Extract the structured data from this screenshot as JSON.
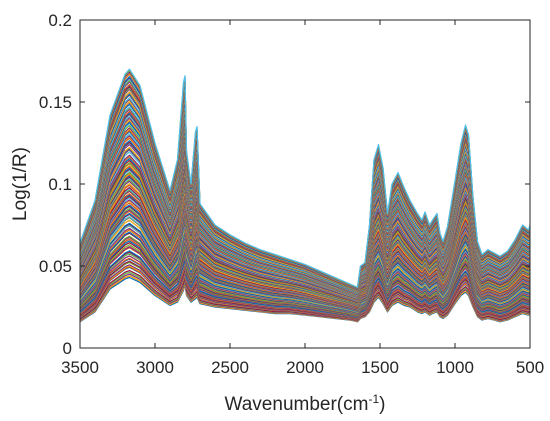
{
  "chart_data": {
    "type": "line",
    "title": "",
    "xlabel": "Wavenumber(cm",
    "xlabel_superscript": "-1",
    "xlabel_suffix": ")",
    "ylabel": "Log(1/R)",
    "xlim": [
      3500,
      500
    ],
    "x_reversed": true,
    "ylim": [
      0,
      0.2
    ],
    "grid": false,
    "box": true,
    "xticks": [
      "3500",
      "3000",
      "2500",
      "2000",
      "1500",
      "1000",
      "500"
    ],
    "xtick_values": [
      3500,
      3000,
      2500,
      2000,
      1500,
      1000,
      500
    ],
    "yticks": [
      "0",
      "0.05",
      "0.1",
      "0.15",
      "0.2"
    ],
    "ytick_values": [
      0,
      0.05,
      0.1,
      0.15,
      0.2
    ],
    "series_count": 160,
    "series_colors": [
      "#0072BD",
      "#D95319",
      "#EDB120",
      "#7E2F8E",
      "#77AC30",
      "#4DBEEE",
      "#A2142F"
    ],
    "series_envelope": {
      "x": [
        3500,
        3400,
        3300,
        3200,
        3170,
        3100,
        3000,
        2900,
        2850,
        2810,
        2800,
        2790,
        2760,
        2730,
        2720,
        2700,
        2600,
        2500,
        2400,
        2300,
        2200,
        2100,
        2000,
        1900,
        1800,
        1700,
        1650,
        1630,
        1600,
        1570,
        1540,
        1510,
        1480,
        1450,
        1420,
        1380,
        1340,
        1300,
        1250,
        1220,
        1200,
        1170,
        1150,
        1120,
        1100,
        1080,
        1050,
        1000,
        960,
        930,
        910,
        880,
        850,
        820,
        780,
        740,
        700,
        650,
        600,
        550,
        510,
        500
      ],
      "upper": [
        0.064,
        0.09,
        0.142,
        0.167,
        0.17,
        0.16,
        0.125,
        0.096,
        0.115,
        0.162,
        0.166,
        0.12,
        0.1,
        0.132,
        0.135,
        0.088,
        0.075,
        0.069,
        0.064,
        0.06,
        0.057,
        0.054,
        0.051,
        0.047,
        0.043,
        0.039,
        0.037,
        0.05,
        0.052,
        0.075,
        0.115,
        0.124,
        0.11,
        0.082,
        0.1,
        0.107,
        0.098,
        0.09,
        0.082,
        0.078,
        0.083,
        0.075,
        0.078,
        0.082,
        0.07,
        0.065,
        0.074,
        0.102,
        0.125,
        0.136,
        0.13,
        0.092,
        0.065,
        0.057,
        0.06,
        0.058,
        0.056,
        0.059,
        0.066,
        0.075,
        0.072,
        0.075
      ],
      "lower": [
        0.016,
        0.022,
        0.036,
        0.042,
        0.043,
        0.04,
        0.032,
        0.026,
        0.028,
        0.035,
        0.039,
        0.032,
        0.028,
        0.03,
        0.031,
        0.027,
        0.025,
        0.024,
        0.023,
        0.022,
        0.021,
        0.021,
        0.02,
        0.019,
        0.018,
        0.017,
        0.016,
        0.018,
        0.019,
        0.022,
        0.028,
        0.031,
        0.027,
        0.022,
        0.026,
        0.028,
        0.026,
        0.025,
        0.022,
        0.021,
        0.022,
        0.02,
        0.021,
        0.022,
        0.019,
        0.018,
        0.02,
        0.027,
        0.032,
        0.034,
        0.032,
        0.025,
        0.019,
        0.017,
        0.018,
        0.017,
        0.016,
        0.017,
        0.019,
        0.021,
        0.02,
        0.021
      ]
    }
  }
}
